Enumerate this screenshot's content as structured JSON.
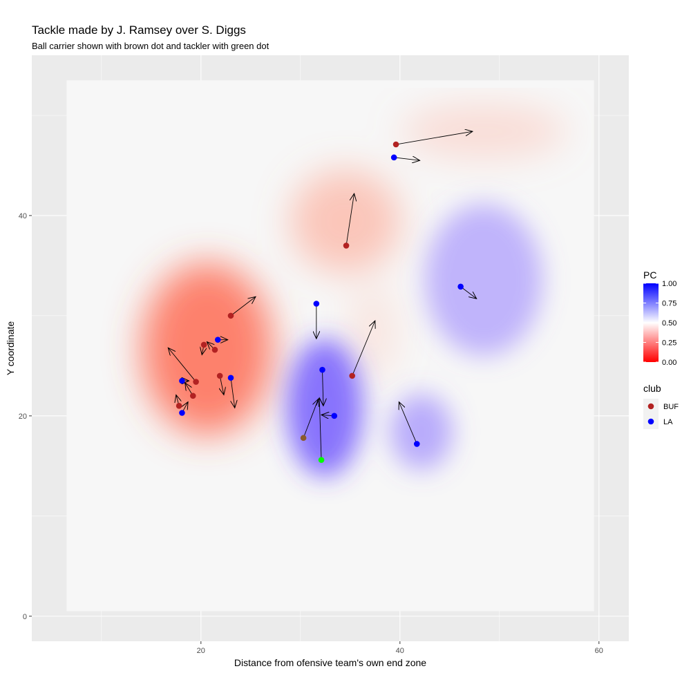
{
  "chart_data": {
    "type": "scatter",
    "title": "Tackle made by J. Ramsey over S. Diggs",
    "subtitle": "Ball carrier shown with brown dot and tackler with green dot",
    "xlabel": "Distance from ofensive team's own end zone",
    "ylabel": "Y coordinate",
    "xlim": [
      3,
      63
    ],
    "ylim": [
      -2.5,
      56
    ],
    "x_ticks": [
      20,
      40,
      60
    ],
    "y_ticks": [
      0,
      20,
      40
    ],
    "field_extent": {
      "x": [
        6.5,
        59.5
      ],
      "y": [
        0.5,
        53.5
      ]
    },
    "grid": true,
    "colors": {
      "BUF": "#b22222",
      "LA": "#0000ff",
      "ball_carrier": "#8b5a2b",
      "tackler": "#00ff00",
      "pc_low": "#ff0000",
      "pc_mid": "#ffffff",
      "pc_high": "#0000ff",
      "panel": "#ebebeb",
      "field": "#f7f7f7"
    },
    "fill_legend": {
      "title": "PC",
      "ticks": [
        "1.00",
        "0.75",
        "0.50",
        "0.25",
        "0.00"
      ]
    },
    "color_legend": {
      "title": "club",
      "entries": [
        {
          "label": "BUF",
          "color": "#b22222"
        },
        {
          "label": "LA",
          "color": "#0000ff"
        }
      ]
    },
    "series": [
      {
        "name": "BUF",
        "points": [
          {
            "x": 39.6,
            "y": 47.1,
            "dx": 7.7,
            "dy": 1.3
          },
          {
            "x": 34.6,
            "y": 37.0,
            "dx": 0.8,
            "dy": 5.2
          },
          {
            "x": 35.2,
            "y": 24.0,
            "dx": 2.3,
            "dy": 5.5
          },
          {
            "x": 23.0,
            "y": 30.0,
            "dx": 2.5,
            "dy": 1.9
          },
          {
            "x": 20.3,
            "y": 27.1,
            "dx": -0.2,
            "dy": -1.0
          },
          {
            "x": 21.4,
            "y": 26.6,
            "dx": -0.8,
            "dy": 0.8
          },
          {
            "x": 21.9,
            "y": 24.0,
            "dx": 0.4,
            "dy": -1.9
          },
          {
            "x": 19.5,
            "y": 23.4,
            "dx": -2.8,
            "dy": 3.4
          },
          {
            "x": 19.2,
            "y": 22.0,
            "dx": -0.8,
            "dy": 1.3
          },
          {
            "x": 17.8,
            "y": 21.0,
            "dx": -0.3,
            "dy": 1.1
          }
        ]
      },
      {
        "name": "LA",
        "points": [
          {
            "x": 39.4,
            "y": 45.8,
            "dx": 2.6,
            "dy": -0.3
          },
          {
            "x": 46.1,
            "y": 32.9,
            "dx": 1.6,
            "dy": -1.2
          },
          {
            "x": 31.6,
            "y": 31.2,
            "dx": 0.0,
            "dy": -3.5
          },
          {
            "x": 21.7,
            "y": 27.6,
            "dx": 1.0,
            "dy": 0.0
          },
          {
            "x": 18.1,
            "y": 23.5,
            "dx": 0.7,
            "dy": 0.0
          },
          {
            "x": 23.0,
            "y": 23.8,
            "dx": 0.4,
            "dy": -3.0
          },
          {
            "x": 18.1,
            "y": 20.3,
            "dx": 0.6,
            "dy": 1.1
          },
          {
            "x": 32.2,
            "y": 24.6,
            "dx": 0.1,
            "dy": -3.6
          },
          {
            "x": 33.4,
            "y": 20.0,
            "dx": -1.3,
            "dy": 0.1
          },
          {
            "x": 41.7,
            "y": 17.2,
            "dx": -1.8,
            "dy": 4.2
          }
        ]
      },
      {
        "name": "Ball carrier",
        "points": [
          {
            "x": 30.3,
            "y": 17.8,
            "dx": 1.5,
            "dy": 3.9
          }
        ]
      },
      {
        "name": "Tackler",
        "points": [
          {
            "x": 32.1,
            "y": 15.6,
            "dx": -0.2,
            "dy": 6.2
          }
        ]
      }
    ]
  }
}
